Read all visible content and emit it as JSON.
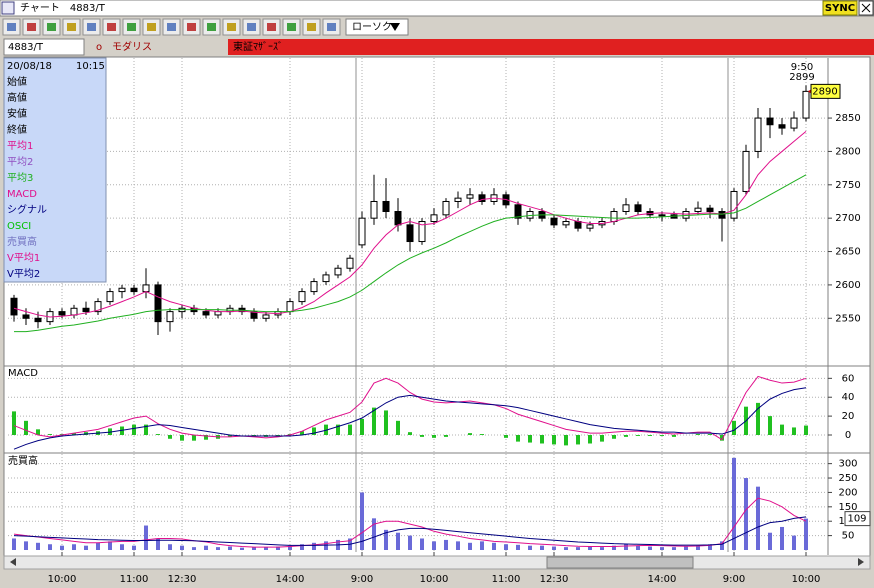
{
  "window": {
    "title": "チャート　4883/T",
    "sync": "SYNC",
    "chart_style": "ローソク",
    "code": "4883/T",
    "marker": "o",
    "name": "モダリス",
    "market": "東証ﾏｻﾞｰｽﾞ"
  },
  "chart_data": [
    {
      "type": "candlestick",
      "categories": [
        null,
        null,
        null,
        null,
        "10:00",
        null,
        null,
        null,
        null,
        null,
        "11:00",
        null,
        null,
        null,
        "12:30",
        null,
        null,
        null,
        null,
        null,
        null,
        null,
        null,
        "14:00",
        null,
        null,
        null,
        null,
        null,
        "9:00",
        null,
        null,
        null,
        null,
        null,
        "10:00",
        null,
        null,
        null,
        null,
        null,
        "11:00",
        null,
        null,
        null,
        "12:30",
        null,
        null,
        null,
        null,
        null,
        null,
        null,
        null,
        "14:00",
        null,
        null,
        null,
        null,
        null,
        "9:00",
        null,
        null,
        null,
        null,
        null,
        "10:00"
      ],
      "open": [
        2580,
        2555,
        2550,
        2545,
        2560,
        2555,
        2565,
        2560,
        2575,
        2590,
        2595,
        2590,
        2600,
        2545,
        2560,
        2565,
        2560,
        2555,
        2560,
        2565,
        2560,
        2550,
        2555,
        2560,
        2575,
        2590,
        2605,
        2615,
        2625,
        2660,
        2700,
        2725,
        2710,
        2690,
        2665,
        2695,
        2705,
        2725,
        2730,
        2735,
        2725,
        2735,
        2720,
        2700,
        2710,
        2700,
        2690,
        2695,
        2685,
        2690,
        2695,
        2710,
        2720,
        2710,
        2705,
        2705,
        2700,
        2710,
        2715,
        2710,
        2700,
        2740,
        2800,
        2850,
        2840,
        2835,
        2850
      ],
      "high": [
        2585,
        2565,
        2560,
        2565,
        2565,
        2570,
        2575,
        2580,
        2595,
        2600,
        2600,
        2625,
        2605,
        2565,
        2570,
        2570,
        2565,
        2565,
        2570,
        2570,
        2565,
        2560,
        2565,
        2580,
        2595,
        2610,
        2620,
        2630,
        2645,
        2710,
        2765,
        2760,
        2730,
        2700,
        2700,
        2715,
        2730,
        2740,
        2745,
        2740,
        2745,
        2740,
        2725,
        2715,
        2715,
        2705,
        2700,
        2700,
        2695,
        2700,
        2715,
        2730,
        2725,
        2715,
        2710,
        2710,
        2715,
        2725,
        2720,
        2715,
        2745,
        2810,
        2865,
        2865,
        2850,
        2860,
        2899
      ],
      "low": [
        2545,
        2540,
        2535,
        2540,
        2550,
        2550,
        2555,
        2555,
        2570,
        2580,
        2585,
        2580,
        2525,
        2530,
        2550,
        2555,
        2550,
        2550,
        2555,
        2555,
        2545,
        2545,
        2550,
        2555,
        2570,
        2585,
        2600,
        2610,
        2620,
        2655,
        2690,
        2700,
        2680,
        2650,
        2660,
        2690,
        2700,
        2715,
        2720,
        2720,
        2720,
        2715,
        2690,
        2695,
        2695,
        2685,
        2685,
        2680,
        2680,
        2685,
        2690,
        2705,
        2705,
        2700,
        2695,
        2700,
        2695,
        2705,
        2700,
        2665,
        2695,
        2735,
        2790,
        2820,
        2825,
        2830,
        2845
      ],
      "close": [
        2555,
        2550,
        2545,
        2560,
        2555,
        2565,
        2560,
        2575,
        2590,
        2595,
        2590,
        2600,
        2545,
        2560,
        2565,
        2560,
        2555,
        2560,
        2565,
        2560,
        2550,
        2555,
        2560,
        2575,
        2590,
        2605,
        2615,
        2625,
        2640,
        2700,
        2725,
        2710,
        2690,
        2665,
        2695,
        2705,
        2725,
        2730,
        2735,
        2725,
        2735,
        2720,
        2700,
        2710,
        2700,
        2690,
        2695,
        2685,
        2690,
        2695,
        2710,
        2720,
        2710,
        2705,
        2705,
        2700,
        2710,
        2715,
        2710,
        2700,
        2740,
        2800,
        2850,
        2840,
        2835,
        2850,
        2890
      ],
      "series": [
        {
          "color": "#e0108c",
          "values": [
            2565,
            2560,
            2555,
            2552,
            2553,
            2555,
            2558,
            2562,
            2568,
            2575,
            2582,
            2590,
            2582,
            2575,
            2570,
            2565,
            2562,
            2560,
            2560,
            2561,
            2559,
            2558,
            2557,
            2560,
            2566,
            2575,
            2588,
            2600,
            2612,
            2630,
            2655,
            2675,
            2690,
            2695,
            2690,
            2692,
            2700,
            2710,
            2720,
            2728,
            2730,
            2728,
            2722,
            2717,
            2712,
            2705,
            2700,
            2695,
            2692,
            2692,
            2695,
            2700,
            2705,
            2707,
            2708,
            2707,
            2706,
            2707,
            2708,
            2706,
            2712,
            2735,
            2765,
            2785,
            2800,
            2815,
            2830
          ]
        },
        {
          "color": "#20b020",
          "values": [
            2530,
            2530,
            2532,
            2535,
            2538,
            2540,
            2543,
            2546,
            2550,
            2553,
            2556,
            2560,
            2562,
            2563,
            2563,
            2563,
            2563,
            2563,
            2562,
            2562,
            2561,
            2560,
            2560,
            2560,
            2562,
            2565,
            2570,
            2575,
            2582,
            2592,
            2605,
            2618,
            2630,
            2640,
            2648,
            2655,
            2663,
            2672,
            2680,
            2688,
            2695,
            2700,
            2702,
            2704,
            2705,
            2705,
            2704,
            2703,
            2702,
            2701,
            2700,
            2700,
            2700,
            2701,
            2702,
            2703,
            2704,
            2705,
            2706,
            2706,
            2708,
            2715,
            2725,
            2735,
            2745,
            2755,
            2765
          ]
        }
      ],
      "last_time": "9:50",
      "ylim": [
        2480,
        2940
      ],
      "yticks": [
        2550,
        2600,
        2650,
        2700,
        2750,
        2800,
        2850
      ],
      "grid": true,
      "info": {
        "date": "20/08/18",
        "time": "10:15",
        "items": [
          {
            "text": "始値",
            "color": "#000000"
          },
          {
            "text": "高値",
            "color": "#000000"
          },
          {
            "text": "安値",
            "color": "#000000"
          },
          {
            "text": "終値",
            "color": "#000000"
          },
          {
            "text": "平均1",
            "color": "#e0108c"
          },
          {
            "text": "平均2",
            "color": "#9050c0"
          },
          {
            "text": "平均3",
            "color": "#20b020"
          },
          {
            "text": "MACD",
            "color": "#e0108c"
          },
          {
            "text": "シグナル",
            "color": "#000080"
          },
          {
            "text": "OSCI",
            "color": "#00c000"
          },
          {
            "text": "売買高",
            "color": "#7070c0"
          },
          {
            "text": "V平均1",
            "color": "#e0108c"
          },
          {
            "text": "V平均2",
            "color": "#000080"
          }
        ]
      }
    },
    {
      "type": "line",
      "title": "MACD",
      "bars": {
        "color": "#20c020",
        "values": [
          25,
          15,
          6,
          1,
          1,
          2,
          3,
          4,
          7,
          9,
          11,
          11,
          1,
          -4,
          -6,
          -6,
          -5,
          -4,
          -2,
          0,
          -1,
          -2,
          -1,
          1,
          4,
          8,
          11,
          11,
          11,
          17,
          29,
          26,
          15,
          3,
          -2,
          -3,
          -2,
          0,
          2,
          1,
          0,
          -3,
          -7,
          -8,
          -9,
          -10,
          -11,
          -10,
          -9,
          -7,
          -4,
          -2,
          -1,
          -1,
          -1,
          -2,
          0,
          1,
          1,
          -6,
          15,
          30,
          34,
          20,
          11,
          8,
          10
        ]
      },
      "series": [
        {
          "color": "#e0108c",
          "values": [
            10,
            5,
            0,
            -2,
            0,
            2,
            4,
            6,
            10,
            14,
            18,
            20,
            12,
            6,
            2,
            0,
            -1,
            -2,
            -2,
            -1,
            -2,
            -3,
            -2,
            0,
            4,
            10,
            16,
            20,
            24,
            35,
            55,
            60,
            55,
            45,
            38,
            35,
            34,
            35,
            36,
            34,
            32,
            28,
            22,
            18,
            14,
            10,
            6,
            4,
            2,
            2,
            3,
            4,
            4,
            3,
            2,
            1,
            2,
            3,
            3,
            -5,
            20,
            45,
            62,
            58,
            55,
            56,
            60
          ]
        },
        {
          "color": "#000080",
          "values": [
            -15,
            -10,
            -6,
            -3,
            -1,
            0,
            1,
            2,
            3,
            5,
            7,
            9,
            11,
            10,
            8,
            6,
            4,
            2,
            0,
            -1,
            -1,
            -1,
            -1,
            -1,
            0,
            2,
            5,
            9,
            13,
            18,
            26,
            34,
            40,
            42,
            40,
            38,
            36,
            35,
            34,
            33,
            32,
            31,
            29,
            26,
            23,
            20,
            17,
            14,
            11,
            9,
            7,
            6,
            5,
            4,
            3,
            3,
            2,
            2,
            2,
            1,
            5,
            15,
            28,
            38,
            44,
            48,
            50
          ]
        }
      ],
      "ylim": [
        -18,
        72
      ],
      "yticks": [
        0,
        20,
        40,
        60
      ],
      "grid": true
    },
    {
      "type": "bar",
      "title": "売買高",
      "color": "#6a6ad8",
      "values": [
        40,
        30,
        25,
        20,
        15,
        20,
        15,
        25,
        30,
        20,
        15,
        85,
        40,
        20,
        15,
        10,
        15,
        10,
        12,
        8,
        10,
        10,
        12,
        15,
        20,
        25,
        30,
        35,
        40,
        200,
        110,
        70,
        60,
        50,
        40,
        30,
        35,
        30,
        25,
        30,
        25,
        20,
        18,
        15,
        15,
        12,
        10,
        10,
        12,
        10,
        15,
        20,
        15,
        12,
        10,
        10,
        12,
        15,
        20,
        30,
        320,
        250,
        220,
        60,
        80,
        50,
        109
      ],
      "series": [
        {
          "color": "#e0108c",
          "values": [
            55,
            50,
            45,
            40,
            35,
            30,
            25,
            25,
            28,
            30,
            30,
            35,
            40,
            40,
            38,
            32,
            28,
            20,
            15,
            12,
            10,
            10,
            10,
            12,
            15,
            18,
            22,
            28,
            32,
            60,
            90,
            100,
            100,
            90,
            80,
            65,
            55,
            48,
            40,
            35,
            30,
            28,
            25,
            22,
            20,
            18,
            15,
            13,
            12,
            12,
            12,
            14,
            15,
            16,
            15,
            14,
            13,
            14,
            16,
            22,
            80,
            140,
            180,
            170,
            150,
            120,
            100
          ]
        },
        {
          "color": "#000080",
          "values": [
            50,
            48,
            46,
            44,
            42,
            40,
            38,
            36,
            35,
            34,
            33,
            33,
            34,
            34,
            33,
            32,
            30,
            28,
            26,
            24,
            22,
            20,
            18,
            16,
            16,
            16,
            17,
            18,
            20,
            30,
            45,
            60,
            70,
            75,
            75,
            72,
            68,
            64,
            60,
            56,
            52,
            48,
            44,
            40,
            37,
            34,
            31,
            28,
            26,
            24,
            22,
            21,
            20,
            19,
            18,
            17,
            17,
            17,
            18,
            20,
            40,
            60,
            80,
            95,
            100,
            110,
            115
          ]
        }
      ],
      "ylim": [
        0,
        330
      ],
      "yticks": [
        50,
        100,
        150,
        200,
        250,
        300
      ],
      "grid": true
    }
  ]
}
